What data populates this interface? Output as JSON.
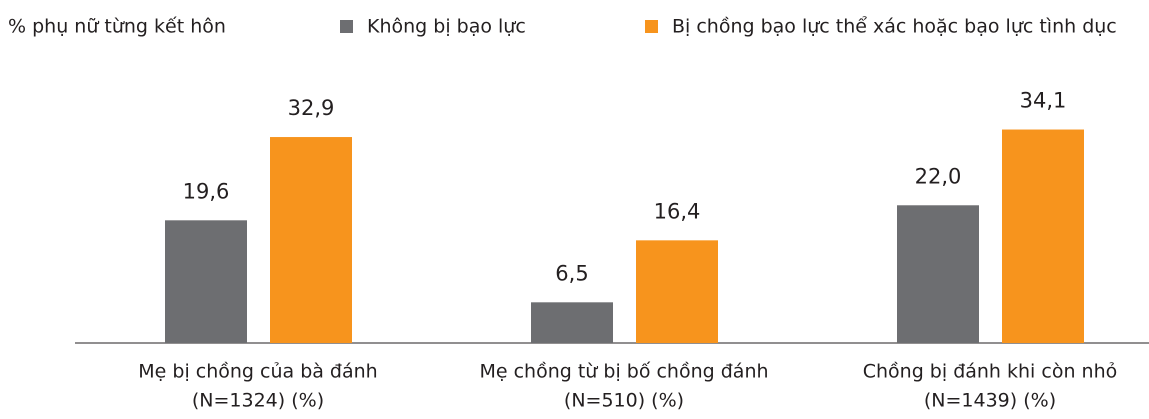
{
  "chart_data": {
    "type": "bar",
    "title": "% phụ nữ từng kết hôn",
    "categories": [
      [
        "Mẹ bị chồng của bà đánh",
        "(N=1324) (%)"
      ],
      [
        "Mẹ chồng từ bị bố chồng đánh",
        "(N=510) (%)"
      ],
      [
        "Chồng bị đánh khi còn nhỏ",
        "(N=1439) (%)"
      ]
    ],
    "series": [
      {
        "name": "Không bị bạo lực",
        "color": "#6d6e71",
        "values": [
          19.6,
          6.5,
          22.0
        ],
        "value_labels": [
          "19,6",
          "6,5",
          "22,0"
        ]
      },
      {
        "name": "Bị chồng bạo lực thể xác hoặc bạo lực tình dục",
        "color": "#f7941d",
        "values": [
          32.9,
          16.4,
          34.1
        ],
        "value_labels": [
          "32,9",
          "16,4",
          "34,1"
        ]
      }
    ],
    "ylim": [
      0,
      50
    ]
  }
}
